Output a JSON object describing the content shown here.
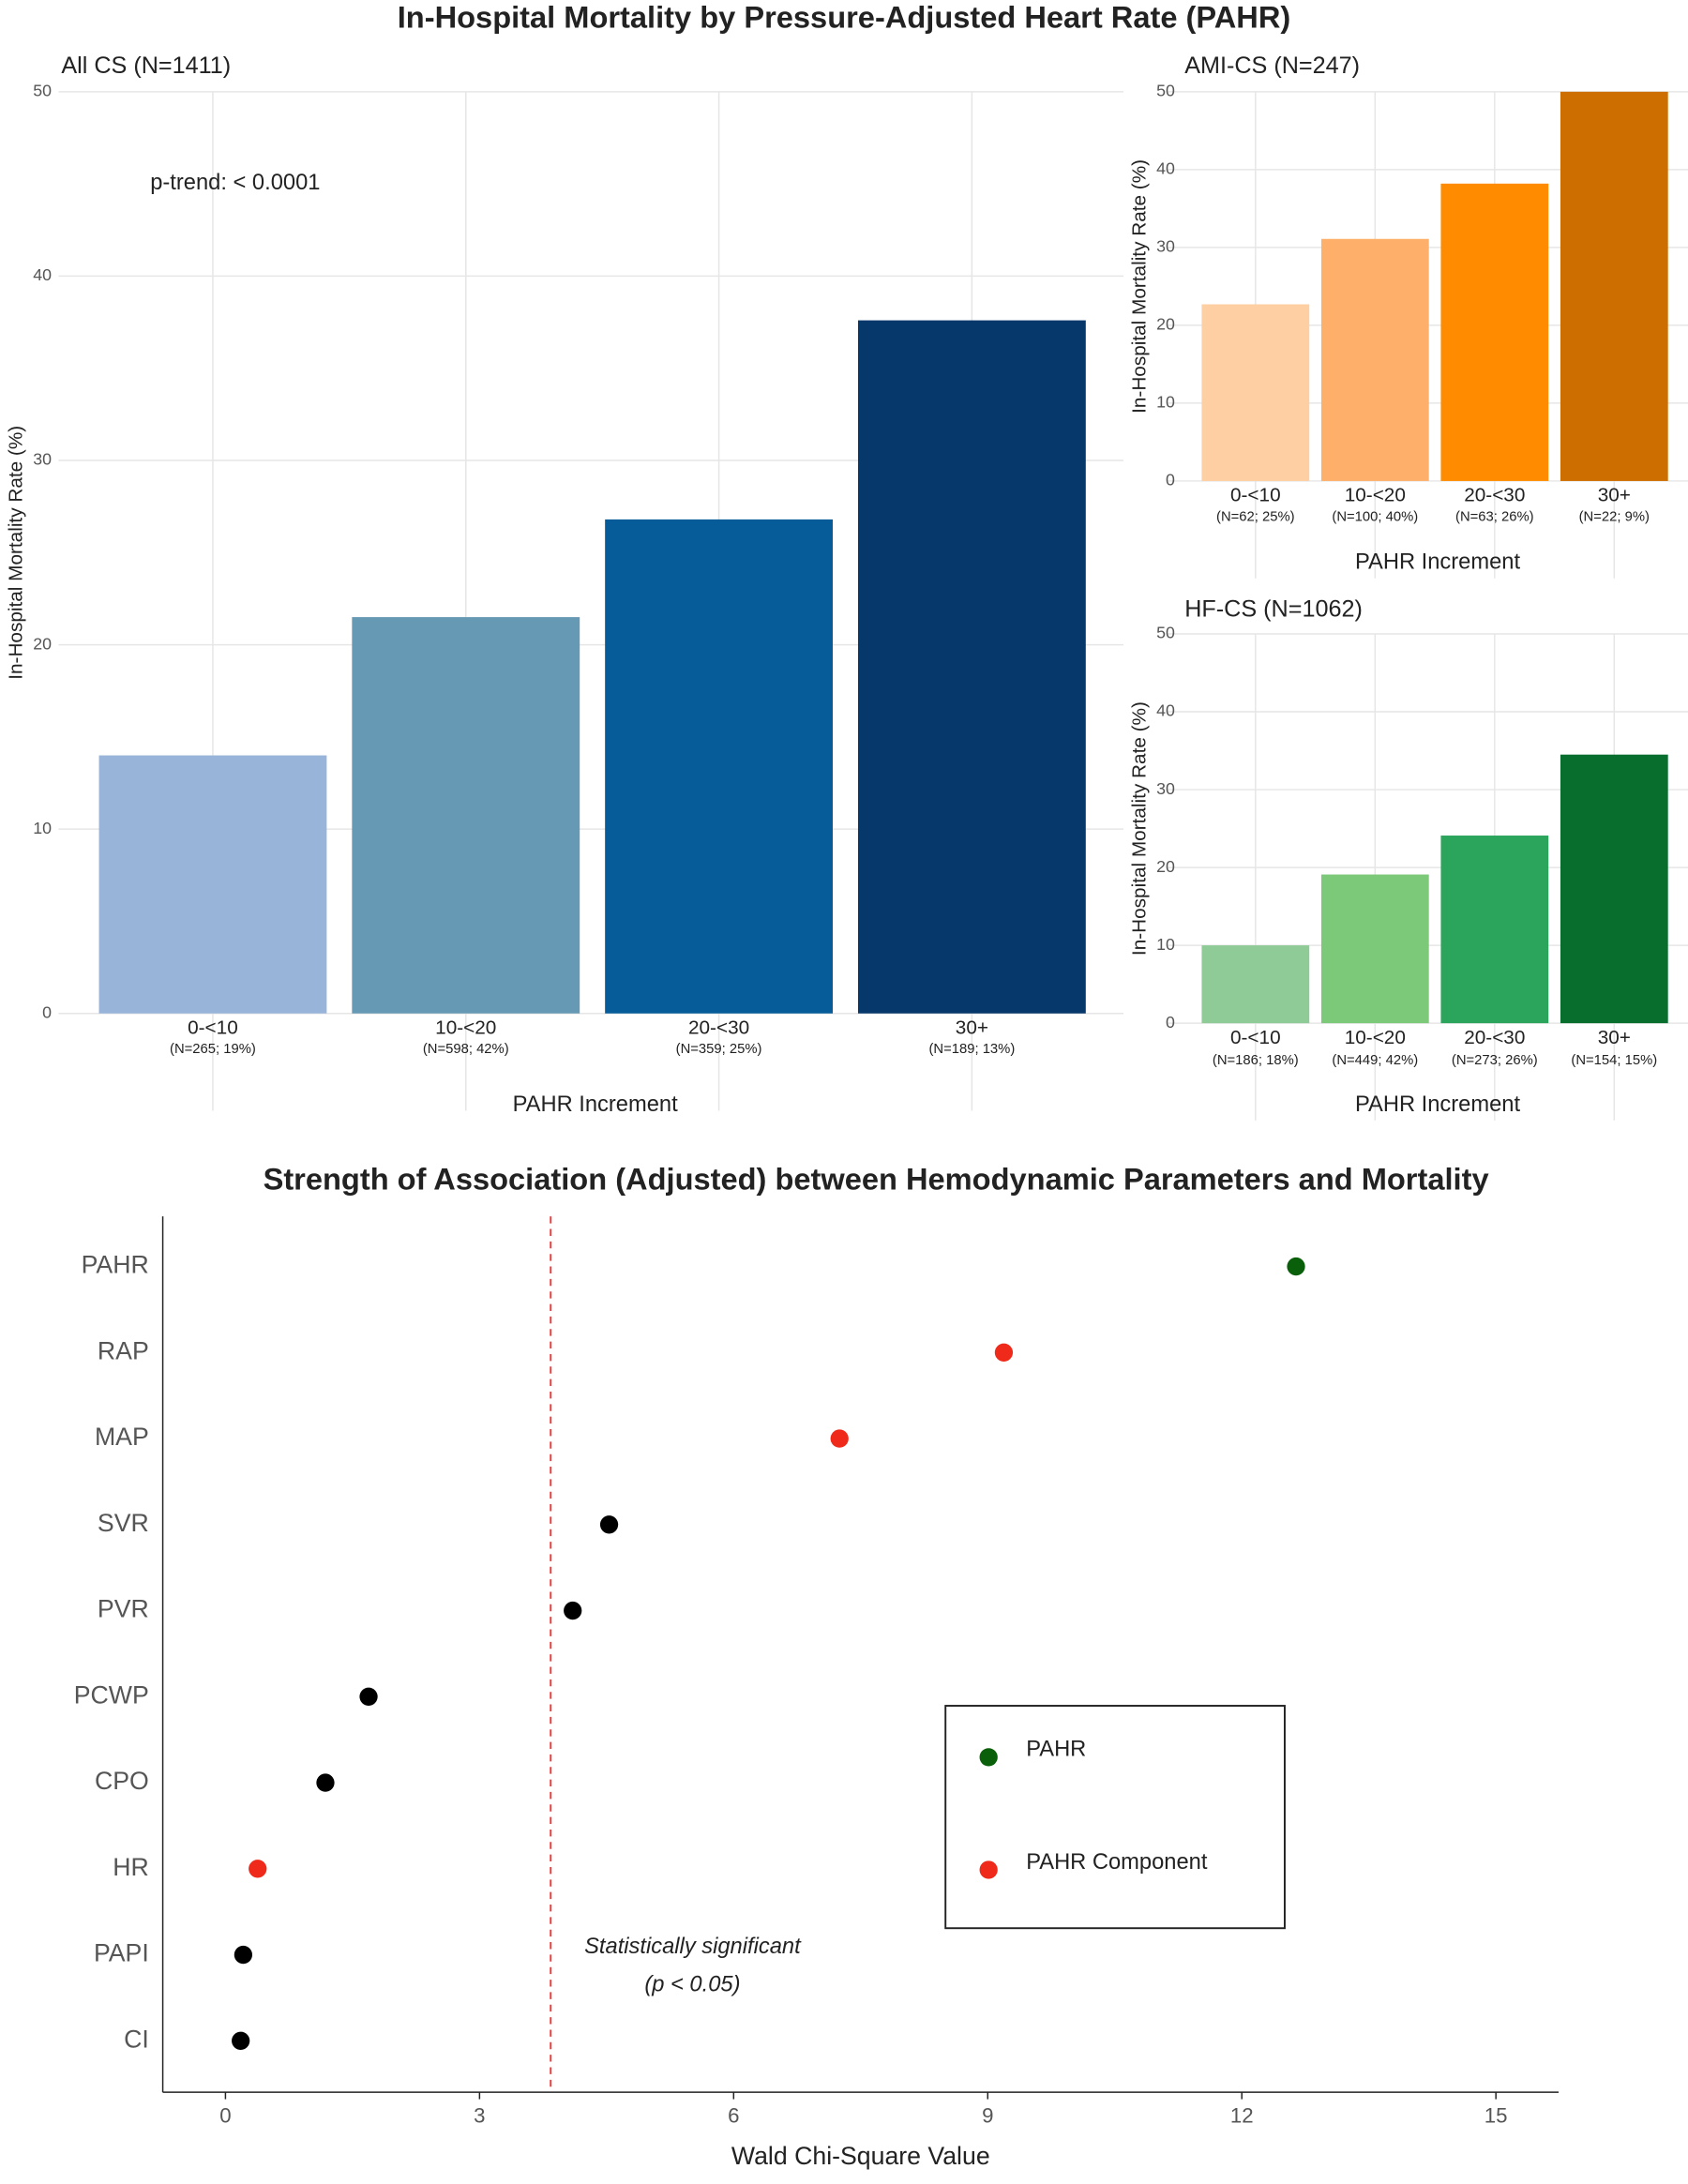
{
  "title": "In-Hospital Mortality by Pressure-Adjusted Heart Rate (PAHR)",
  "chart_data": [
    {
      "type": "bar",
      "title": "All CS (N=1411)",
      "annotation": "p-trend: < 0.0001",
      "categories": [
        "0-<10",
        "10-<20",
        "20-<30",
        "30+"
      ],
      "sublabels": [
        "(N=265; 19%)",
        "(N=598; 42%)",
        "(N=359; 25%)",
        "(N=189; 13%)"
      ],
      "values": [
        14.0,
        21.5,
        26.8,
        37.6
      ],
      "colors": [
        "#98b4d8",
        "#6699b4",
        "#065c98",
        "#07386b"
      ],
      "ylim": [
        0,
        50
      ],
      "yticks": [
        0,
        10,
        20,
        30,
        40,
        50
      ],
      "grid": true,
      "ylabel": "In-Hospital Mortality Rate (%)",
      "xlabel": "PAHR Increment"
    },
    {
      "type": "bar",
      "title": "AMI-CS (N=247)",
      "categories": [
        "0-<10",
        "10-<20",
        "20-<30",
        "30+"
      ],
      "sublabels": [
        "(N=62; 25%)",
        "(N=100; 40%)",
        "(N=63; 26%)",
        "(N=22; 9%)"
      ],
      "values": [
        22.7,
        31.1,
        38.2,
        50
      ],
      "colors": [
        "#fecfa2",
        "#feb06b",
        "#ff8c00",
        "#cc6f00"
      ],
      "ylim": [
        0,
        50
      ],
      "yticks": [
        0,
        10,
        20,
        30,
        40,
        50
      ],
      "grid": true,
      "ylabel": "In-Hospital Mortality Rate (%)",
      "xlabel": "PAHR Increment"
    },
    {
      "type": "bar",
      "title": "HF-CS (N=1062)",
      "categories": [
        "0-<10",
        "10-<20",
        "20-<30",
        "30+"
      ],
      "sublabels": [
        "(N=186; 18%)",
        "(N=449; 42%)",
        "(N=273; 26%)",
        "(N=154; 15%)"
      ],
      "values": [
        10.0,
        19.1,
        24.1,
        34.5
      ],
      "colors": [
        "#8ecb96",
        "#7cc97a",
        "#2ba45c",
        "#076e2e"
      ],
      "ylim": [
        0,
        50
      ],
      "yticks": [
        0,
        10,
        20,
        30,
        40,
        50
      ],
      "grid": true,
      "ylabel": "In-Hospital Mortality Rate (%)",
      "xlabel": "PAHR Increment"
    },
    {
      "type": "dotplot",
      "title": "Strength of Association (Adjusted) between Hemodynamic Parameters and Mortality",
      "categories": [
        "PAHR",
        "RAP",
        "MAP",
        "SVR",
        "PVR",
        "PCWP",
        "CPO",
        "HR",
        "PAPI",
        "CI"
      ],
      "values": [
        12.64,
        9.19,
        7.25,
        4.53,
        4.1,
        1.69,
        1.18,
        0.38,
        0.21,
        0.18
      ],
      "colors": [
        "#0a5f0a",
        "#f02a1a",
        "#f02a1a",
        "#000000",
        "#000000",
        "#000000",
        "#000000",
        "#f02a1a",
        "#000000",
        "#000000"
      ],
      "xlim": [
        -0.74,
        15.74
      ],
      "xticks": [
        0,
        3,
        6,
        9,
        12,
        15
      ],
      "xlabel": "Wald Chi-Square Value",
      "threshold": 3.84,
      "threshold_color": "#ee3b3b",
      "annotation": [
        "Statistically significant",
        "(p < 0.05)"
      ],
      "legend": [
        {
          "name": "PAHR",
          "color": "#0a5f0a"
        },
        {
          "name": "PAHR Component",
          "color": "#f02a1a"
        }
      ]
    }
  ]
}
